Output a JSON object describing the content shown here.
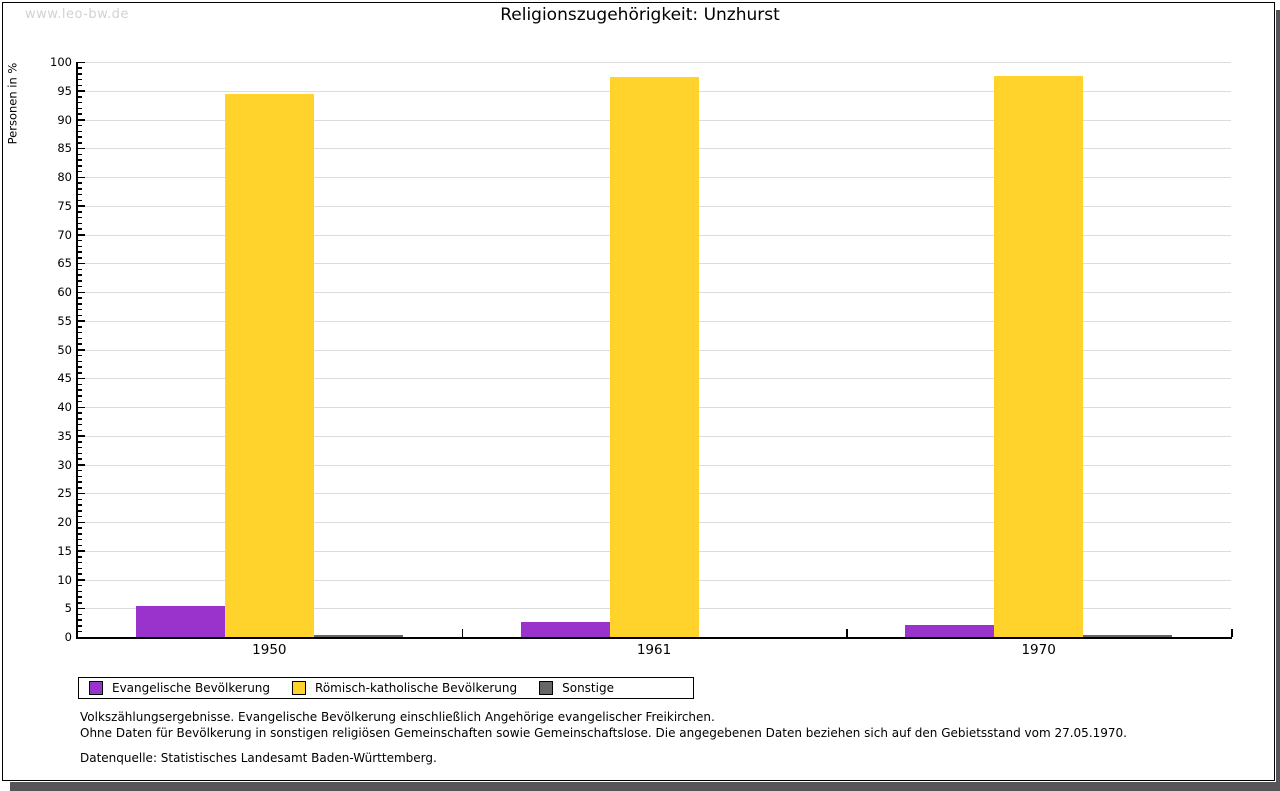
{
  "watermark": "www.leo-bw.de",
  "title": "Religionszugehörigkeit: Unzhurst",
  "chart_data": {
    "type": "bar",
    "title": "Religionszugehörigkeit: Unzhurst",
    "categories": [
      "1950",
      "1961",
      "1970"
    ],
    "series": [
      {
        "name": "Evangelische Bevölkerung",
        "color": "#9933CC",
        "values": [
          5.4,
          2.6,
          2.1
        ]
      },
      {
        "name": "Römisch-katholische Bevölkerung",
        "color": "#FFD32B",
        "values": [
          94.4,
          97.4,
          97.6
        ]
      },
      {
        "name": "Sonstige",
        "color": "#666666",
        "values": [
          0.3,
          0.0,
          0.3
        ]
      }
    ],
    "xlabel": "",
    "ylabel": "Personen in %",
    "ylim": [
      0,
      100
    ],
    "ytick_step": 5,
    "yminor_tick_step": 1,
    "grid": true,
    "legend_position": "bottom-left",
    "gridline_color": "#dcdcdc",
    "axis_color": "#000000"
  },
  "footer": {
    "notes": [
      "Volkszählungsergebnisse. Evangelische Bevölkerung einschließlich Angehörige evangelischer Freikirchen.",
      "Ohne Daten für Bevölkerung in sonstigen religiösen Gemeinschaften sowie Gemeinschaftslose. Die angegebenen Daten beziehen sich auf den Gebietsstand vom 27.05.1970."
    ],
    "source": "Datenquelle: Statistisches Landesamt Baden-Württemberg."
  }
}
